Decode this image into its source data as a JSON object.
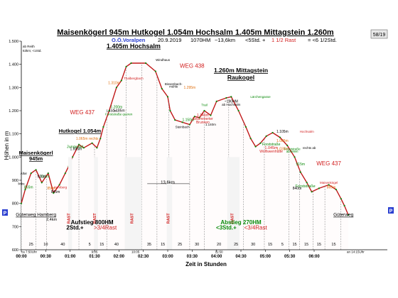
{
  "header": {
    "title": "Maisenkögerl 945m Hutkogel 1.054m Hochsalm 1.405m Mittagstein 1.260m",
    "line2_region": "O.Ö.Voralpen",
    "line2_date": "20.9.2019",
    "line2_hm": "1070HM",
    "line2_dist": "~13,6km",
    "line2_time_a": "<5Std. +",
    "line2_time_b": "1 1/2 Rast",
    "line2_time_c": "= <6 1/2Std.",
    "badge": "58/19",
    "start_note_1": "ab Reith",
    "start_note_2": "63km; <1Std."
  },
  "chart_data": {
    "type": "area",
    "xlabel": "Zeit in Stunden",
    "ylabel": "Höhen in m",
    "ylim": [
      600,
      1500
    ],
    "xlim": [
      0,
      7.5
    ],
    "yticks": [
      600,
      700,
      800,
      900,
      1000,
      1100,
      1200,
      1300,
      1400,
      1500
    ],
    "ytick_labels": [
      "600",
      "700",
      "800",
      "900",
      "1.000",
      "1.100",
      "1.200",
      "1.300",
      "1.400",
      "1.500"
    ],
    "xticks": [
      0,
      0.5,
      1,
      1.5,
      2,
      2.5,
      3,
      3.5,
      4,
      4.5,
      5,
      5.5,
      6
    ],
    "xtick_labels": [
      "00:00",
      "00:30",
      "01:00",
      "01:30",
      "02:00",
      "02:30",
      "03:00",
      "03:30",
      "04:00",
      "04:30",
      "05:00",
      "05:30",
      "06:00"
    ],
    "profile": {
      "x": [
        0,
        0.08,
        0.2,
        0.3,
        0.42,
        0.55,
        0.66,
        0.78,
        0.9,
        0.97,
        1.05,
        1.18,
        1.28,
        1.45,
        1.55,
        1.62,
        1.68,
        1.8,
        1.95,
        2.05,
        2.15,
        2.25,
        2.55,
        2.75,
        2.88,
        3.0,
        3.05,
        3.15,
        3.3,
        3.45,
        3.55,
        3.65,
        3.75,
        3.88,
        4.0,
        4.2,
        4.3,
        4.45,
        4.6,
        4.7,
        4.8,
        4.9,
        5.02,
        5.15,
        5.3,
        5.45,
        5.6,
        5.72,
        5.85,
        5.95,
        6.1,
        6.3,
        6.45,
        6.55,
        6.62,
        6.7
      ],
      "y": [
        800,
        860,
        930,
        945,
        890,
        930,
        845,
        880,
        930,
        960,
        1000,
        1054,
        1040,
        1060,
        1040,
        1080,
        1130,
        1200,
        1300,
        1330,
        1390,
        1405,
        1405,
        1370,
        1295,
        1260,
        1200,
        1160,
        1150,
        1140,
        1175,
        1170,
        1200,
        1180,
        1240,
        1255,
        1260,
        1200,
        1130,
        1080,
        1045,
        1060,
        1090,
        1105,
        1085,
        1050,
        1000,
        935,
        890,
        850,
        865,
        880,
        860,
        820,
        790,
        750
      ]
    },
    "rast_bands": [
      {
        "x0": 0.96,
        "x1": 1.04,
        "y": 735,
        "label": "RAST",
        "color": "#d22020"
      },
      {
        "x0": 1.49,
        "x1": 1.57,
        "y": 735,
        "label": "RAST",
        "color": "#d22020"
      },
      {
        "x0": 2.12,
        "x1": 2.47,
        "y": 735,
        "label": "RAST",
        "color": "#d22020"
      },
      {
        "x0": 2.98,
        "x1": 3.09,
        "y": 735,
        "label": "RAST",
        "color": "#d22020"
      },
      {
        "x0": 4.22,
        "x1": 4.47,
        "y": 735,
        "label": "RAST",
        "color": "#d22020"
      }
    ],
    "segment_markers": [
      0,
      0.3,
      0.52,
      1.18,
      1.5,
      1.75,
      2.15,
      2.47,
      2.78,
      3.02,
      3.45,
      3.75,
      4.25,
      4.55,
      4.98,
      5.48,
      5.7,
      5.98,
      6.22,
      6.55
    ],
    "durations": [
      {
        "x": 0.2,
        "label": "25"
      },
      {
        "x": 0.5,
        "label": "10"
      },
      {
        "x": 0.85,
        "label": "40"
      },
      {
        "x": 1.4,
        "label": "5"
      },
      {
        "x": 1.65,
        "label": "15"
      },
      {
        "x": 1.95,
        "label": "40"
      },
      {
        "x": 2.62,
        "label": "35"
      },
      {
        "x": 2.9,
        "label": "15"
      },
      {
        "x": 3.25,
        "label": "25"
      },
      {
        "x": 3.6,
        "label": "30"
      },
      {
        "x": 4.05,
        "label": "20"
      },
      {
        "x": 4.4,
        "label": "25"
      },
      {
        "x": 4.75,
        "label": "30"
      },
      {
        "x": 5.1,
        "label": "15"
      },
      {
        "x": 5.35,
        "label": "5"
      },
      {
        "x": 5.6,
        "label": "15"
      },
      {
        "x": 5.84,
        "label": "15"
      },
      {
        "x": 6.1,
        "label": "15"
      },
      {
        "x": 6.4,
        "label": "15"
      }
    ],
    "clock_marks": [
      {
        "x": 0,
        "label": "ca 7:50Uhr"
      },
      {
        "x": 1.5,
        "label": "9:05"
      },
      {
        "x": 2.34,
        "label": "10:05"
      },
      {
        "x": 4.05,
        "label": "11:50"
      },
      {
        "x": 6.85,
        "label": "an 14:15Uhr"
      }
    ],
    "annotations": [
      {
        "x": 0.3,
        "y": 1010,
        "text": "Maisenkögerl",
        "size": 7.5,
        "color": "#000",
        "bold": true,
        "underline": true
      },
      {
        "x": 0.3,
        "y": 985,
        "text": "945m",
        "size": 7.5,
        "color": "#000",
        "bold": true,
        "underline": true
      },
      {
        "x": 1.2,
        "y": 1105,
        "text": "Hutkogel 1.054m",
        "size": 7.5,
        "color": "#000",
        "bold": true,
        "underline": true
      },
      {
        "x": 2.3,
        "y": 1470,
        "text": "1.405m Hochsalm",
        "size": 9,
        "color": "#000",
        "bold": true,
        "underline": true
      },
      {
        "x": 4.5,
        "y": 1365,
        "text": "1.260m Mittagstein",
        "size": 8.5,
        "color": "#000",
        "bold": true,
        "underline": true
      },
      {
        "x": 4.5,
        "y": 1335,
        "text": "Raukogel",
        "size": 8.5,
        "color": "#000",
        "bold": true,
        "underline": true
      },
      {
        "x": 1.25,
        "y": 1185,
        "text": "WEG 437",
        "size": 8,
        "color": "#d22020",
        "bold": false,
        "underline": false
      },
      {
        "x": 3.5,
        "y": 1385,
        "text": "WEG 438",
        "size": 8,
        "color": "#d22020",
        "bold": false,
        "underline": false
      },
      {
        "x": 6.3,
        "y": 965,
        "text": "WEG 437",
        "size": 8,
        "color": "#d22020",
        "bold": false,
        "underline": false
      },
      {
        "x": 0.3,
        "y": 745,
        "text": "Güterweg Hamberg",
        "size": 6.5,
        "color": "#000",
        "bold": false,
        "underline": true
      },
      {
        "x": 0.62,
        "y": 725,
        "text": "2,4km",
        "size": 5.5,
        "color": "#000",
        "bold": false,
        "underline": false
      },
      {
        "x": 6.6,
        "y": 745,
        "text": "Güterweg",
        "size": 6.5,
        "color": "#000",
        "bold": false,
        "underline": true
      },
      {
        "x": 3.0,
        "y": 885,
        "text": "13,6km",
        "size": 6,
        "color": "#000",
        "bold": false,
        "underline": false
      },
      {
        "x": 1.45,
        "y": 710,
        "text": "Aufstieg 800HM",
        "size": 8,
        "color": "#000",
        "bold": true,
        "underline": false
      },
      {
        "x": 1.1,
        "y": 688,
        "text": "2Std.+",
        "size": 8,
        "color": "#000",
        "bold": true,
        "underline": false
      },
      {
        "x": 1.72,
        "y": 688,
        "text": ">3/4Rast",
        "size": 8,
        "color": "#d22020",
        "bold": false,
        "underline": false
      },
      {
        "x": 4.5,
        "y": 710,
        "text": "Abstieg 270HM",
        "size": 8,
        "color": "#0a8a0a",
        "bold": true,
        "underline": false
      },
      {
        "x": 4.2,
        "y": 688,
        "text": "<3Std.+",
        "size": 8,
        "color": "#0a8a0a",
        "bold": true,
        "underline": false
      },
      {
        "x": 4.8,
        "y": 688,
        "text": "<3/4Rast",
        "size": 8,
        "color": "#d22020",
        "bold": false,
        "underline": false
      },
      {
        "x": 1.1,
        "y": 1040,
        "text": "Jungwald",
        "size": 5.5,
        "color": "#0a8a0a",
        "bold": false,
        "underline": false
      },
      {
        "x": 2.0,
        "y": 1180,
        "text": "Forststraße queren",
        "size": 4.5,
        "color": "#0a8a0a",
        "bold": false,
        "underline": false
      },
      {
        "x": 4.9,
        "y": 1255,
        "text": "Lärchengasse",
        "size": 4.5,
        "color": "#0a8a0a",
        "bold": false,
        "underline": false
      },
      {
        "x": 5.55,
        "y": 1030,
        "text": "Forststraße",
        "size": 4.5,
        "color": "#0a8a0a",
        "bold": false,
        "underline": false
      },
      {
        "x": 5.55,
        "y": 1020,
        "text": "abseilen",
        "size": 4.5,
        "color": "#0a8a0a",
        "bold": false,
        "underline": false
      },
      {
        "x": 5.82,
        "y": 870,
        "text": "Forststraße",
        "size": 5.5,
        "color": "#0a8a0a",
        "bold": false,
        "underline": false
      },
      {
        "x": 5.12,
        "y": 1050,
        "text": "Forststraße",
        "size": 5,
        "color": "#0a8a0a",
        "bold": false,
        "underline": false
      },
      {
        "x": 3.42,
        "y": 1155,
        "text": "1.150m",
        "size": 5,
        "color": "#0a8a0a",
        "bold": false,
        "underline": false
      },
      {
        "x": 3.75,
        "y": 1220,
        "text": "Trail",
        "size": 4.5,
        "color": "#0a8a0a",
        "bold": false,
        "underline": false
      },
      {
        "x": 1.95,
        "y": 1210,
        "text": "1.200m",
        "size": 5,
        "color": "#0a8a0a",
        "bold": false,
        "underline": false
      },
      {
        "x": 5.72,
        "y": 965,
        "text": "915m",
        "size": 5,
        "color": "#0a8a0a",
        "bold": false,
        "underline": false
      },
      {
        "x": 0.48,
        "y": 910,
        "text": "910m",
        "size": 5,
        "color": "#0a8a0a",
        "bold": false,
        "underline": false
      },
      {
        "x": 0.15,
        "y": 865,
        "text": "865m",
        "size": 5,
        "color": "#0a8a0a",
        "bold": false,
        "underline": false
      },
      {
        "x": 1.35,
        "y": 1075,
        "text": "1.065m rechts",
        "size": 5,
        "color": "#e07010",
        "bold": false,
        "underline": false
      },
      {
        "x": 1.9,
        "y": 1315,
        "text": "1.310m",
        "size": 5,
        "color": "#e07010",
        "bold": false,
        "underline": false
      },
      {
        "x": 3.45,
        "y": 1295,
        "text": "1.295m",
        "size": 5,
        "color": "#e07010",
        "bold": false,
        "underline": false
      },
      {
        "x": 5.35,
        "y": 1065,
        "text": "1.065m",
        "size": 5,
        "color": "#e07010",
        "bold": false,
        "underline": false
      },
      {
        "x": 5.35,
        "y": 1030,
        "text": "1.035m",
        "size": 5,
        "color": "#e07010",
        "bold": false,
        "underline": false
      },
      {
        "x": 6.35,
        "y": 865,
        "text": "865m",
        "size": 5,
        "color": "#e07010",
        "bold": false,
        "underline": false
      },
      {
        "x": 0.62,
        "y": 860,
        "text": "850m",
        "size": 5,
        "color": "#e07010",
        "bold": false,
        "underline": false
      },
      {
        "x": 2.3,
        "y": 1335,
        "text": "Thalbergbach",
        "size": 4.5,
        "color": "#d22020",
        "bold": false,
        "underline": false
      },
      {
        "x": 3.72,
        "y": 1175,
        "text": "1.140m",
        "size": 5,
        "color": "#d22020",
        "bold": false,
        "underline": false
      },
      {
        "x": 3.72,
        "y": 1160,
        "text": "Gezimmerter",
        "size": 5,
        "color": "#d22020",
        "bold": false,
        "underline": false
      },
      {
        "x": 3.72,
        "y": 1145,
        "text": "Brunnen",
        "size": 5,
        "color": "#d22020",
        "bold": false,
        "underline": false
      },
      {
        "x": 5.12,
        "y": 1035,
        "text": "1.045m",
        "size": 5.5,
        "color": "#d22020",
        "bold": false,
        "underline": false
      },
      {
        "x": 5.12,
        "y": 1020,
        "text": "Wolfswenhütte",
        "size": 5,
        "color": "#d22020",
        "bold": false,
        "underline": false
      },
      {
        "x": 6.3,
        "y": 885,
        "text": "Maisenkögel",
        "size": 4.5,
        "color": "#d22020",
        "bold": false,
        "underline": false
      },
      {
        "x": 5.85,
        "y": 1105,
        "text": "Hochsalm",
        "size": 4.5,
        "color": "#d22020",
        "bold": false,
        "underline": false
      },
      {
        "x": 0.8,
        "y": 865,
        "text": "Hamberg",
        "size": 4.5,
        "color": "#d22020",
        "bold": false,
        "underline": false
      },
      {
        "x": 0.05,
        "y": 925,
        "text": "Altar",
        "size": 4.5,
        "color": "#000",
        "bold": false,
        "underline": false
      },
      {
        "x": 0.0,
        "y": 880,
        "text": "links",
        "size": 4.5,
        "color": "#000",
        "bold": false,
        "underline": false
      },
      {
        "x": 0.7,
        "y": 845,
        "text": "845m",
        "size": 5,
        "color": "#000",
        "bold": false,
        "underline": false
      },
      {
        "x": 1.12,
        "y": 1030,
        "text": "1.035m",
        "size": 5,
        "color": "#000",
        "bold": false,
        "underline": false
      },
      {
        "x": 2.0,
        "y": 1195,
        "text": "1.185m",
        "size": 5,
        "color": "#000",
        "bold": false,
        "underline": false
      },
      {
        "x": 2.9,
        "y": 1415,
        "text": "Windhaus",
        "size": 4.5,
        "color": "#000",
        "bold": false,
        "underline": false
      },
      {
        "x": 3.12,
        "y": 1310,
        "text": "Bissenbach-",
        "size": 4.5,
        "color": "#000",
        "bold": false,
        "underline": false
      },
      {
        "x": 3.12,
        "y": 1300,
        "text": "mühle",
        "size": 4.5,
        "color": "#000",
        "bold": false,
        "underline": false
      },
      {
        "x": 3.3,
        "y": 1125,
        "text": "Steinbach",
        "size": 4.5,
        "color": "#000",
        "bold": false,
        "underline": false
      },
      {
        "x": 3.88,
        "y": 1135,
        "text": "1.140m",
        "size": 4.5,
        "color": "#000",
        "bold": false,
        "underline": false
      },
      {
        "x": 4.3,
        "y": 1235,
        "text": "~190HM",
        "size": 5,
        "color": "#000",
        "bold": false,
        "underline": false
      },
      {
        "x": 4.3,
        "y": 1222,
        "text": "ab Hochsalm",
        "size": 4.5,
        "color": "#000",
        "bold": false,
        "underline": false
      },
      {
        "x": 5.35,
        "y": 1105,
        "text": "1.105m",
        "size": 5,
        "color": "#000",
        "bold": false,
        "underline": false
      },
      {
        "x": 5.9,
        "y": 1035,
        "text": "rechts ab",
        "size": 4.5,
        "color": "#000",
        "bold": false,
        "underline": false
      },
      {
        "x": 5.65,
        "y": 860,
        "text": "840m",
        "size": 5,
        "color": "#000",
        "bold": false,
        "underline": false
      },
      {
        "x": 0.42,
        "y": 910,
        "text": "920m",
        "size": 5,
        "color": "#000",
        "bold": false,
        "underline": false
      },
      {
        "x": 1.85,
        "y": 1195,
        "text": "1.150m",
        "size": 4.5,
        "color": "#000",
        "bold": false,
        "underline": false
      }
    ],
    "legend": "none",
    "grid": false
  },
  "colors": {
    "fill": "#fffcfc",
    "line": "#000000",
    "accent_red": "#d22020",
    "accent_green": "#0a8a0a",
    "accent_orange": "#e07010",
    "accent_blue": "#2a3fd0"
  }
}
